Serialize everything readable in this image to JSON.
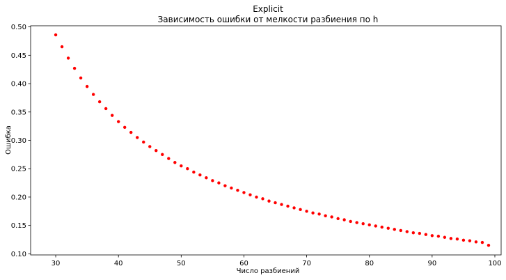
{
  "chart_data": {
    "type": "scatter",
    "title": "Explicit",
    "subtitle": "Зависимость ошибки от мелкости разбиения по h",
    "xlabel": "Число разбиений",
    "ylabel": "Ошибка",
    "xlim": [
      26,
      101
    ],
    "ylim": [
      0.098,
      0.502
    ],
    "xticks": [
      30,
      40,
      50,
      60,
      70,
      80,
      90,
      100
    ],
    "yticks": [
      0.1,
      0.15,
      0.2,
      0.25,
      0.3,
      0.35,
      0.4,
      0.45,
      0.5
    ],
    "grid": false,
    "marker_color": "#ff0000",
    "series": [
      {
        "x": [
          30,
          31,
          32,
          33,
          34,
          35,
          36,
          37,
          38,
          39,
          40,
          41,
          42,
          43,
          44,
          45,
          46,
          47,
          48,
          49,
          50,
          51,
          52,
          53,
          54,
          55,
          56,
          57,
          58,
          59,
          60,
          61,
          62,
          63,
          64,
          65,
          66,
          67,
          68,
          69,
          70,
          71,
          72,
          73,
          74,
          75,
          76,
          77,
          78,
          79,
          80,
          81,
          82,
          83,
          84,
          85,
          86,
          87,
          88,
          89,
          90,
          91,
          92,
          93,
          94,
          95,
          96,
          97,
          98,
          99
        ],
        "y": [
          0.486,
          0.465,
          0.445,
          0.427,
          0.41,
          0.395,
          0.381,
          0.368,
          0.356,
          0.344,
          0.333,
          0.323,
          0.314,
          0.305,
          0.297,
          0.289,
          0.282,
          0.275,
          0.268,
          0.261,
          0.255,
          0.25,
          0.244,
          0.239,
          0.234,
          0.229,
          0.225,
          0.22,
          0.216,
          0.212,
          0.208,
          0.204,
          0.2,
          0.197,
          0.193,
          0.19,
          0.187,
          0.184,
          0.181,
          0.178,
          0.175,
          0.172,
          0.17,
          0.167,
          0.165,
          0.162,
          0.16,
          0.157,
          0.155,
          0.153,
          0.151,
          0.149,
          0.147,
          0.145,
          0.143,
          0.141,
          0.139,
          0.137,
          0.136,
          0.134,
          0.132,
          0.131,
          0.129,
          0.127,
          0.126,
          0.124,
          0.123,
          0.121,
          0.12,
          0.115
        ]
      }
    ]
  }
}
